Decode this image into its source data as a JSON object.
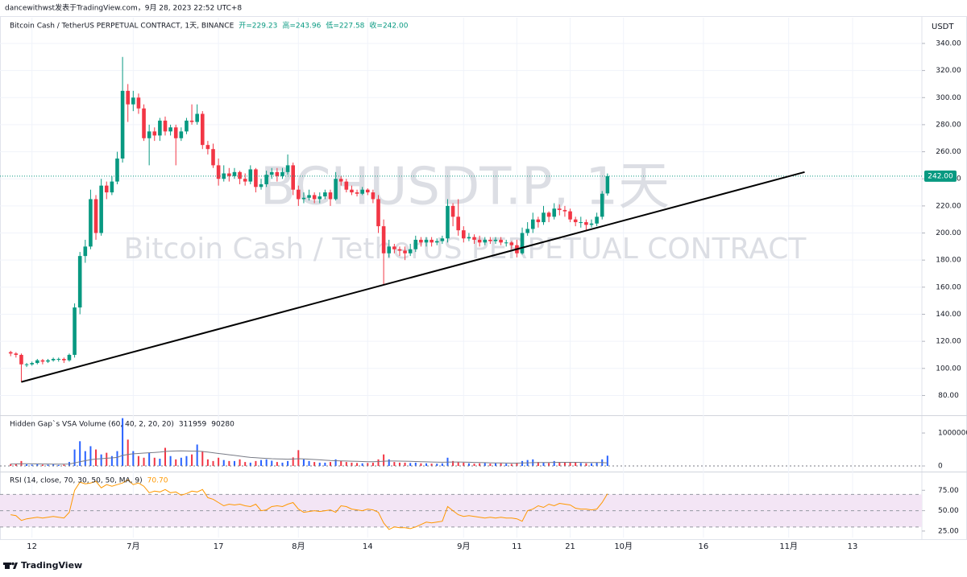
{
  "header": {
    "author_line": "dancewithwst发表于TradingView.com，9月 28, 2023 22:52 UTC+8",
    "currency": "USDT",
    "brand": "TradingView"
  },
  "chart_data": {
    "type": "candlestick",
    "title": "Bitcoin Cash / TetherUS PERPETUAL CONTRACT, 1天, BINANCE",
    "ohlc_labels": [
      "开=229.23",
      "高=243.96",
      "低=227.58",
      "收=242.00"
    ],
    "watermark": [
      "BCHUSDT.P, 1天",
      "Bitcoin Cash / TetherUS PERPETUAL CONTRACT"
    ],
    "up_color": "#089981",
    "down_color": "#f23645",
    "x": [
      "2023-06-08",
      "2023-06-09",
      "2023-06-10",
      "2023-06-11",
      "2023-06-12",
      "2023-06-13",
      "2023-06-14",
      "2023-06-15",
      "2023-06-16",
      "2023-06-17",
      "2023-06-18",
      "2023-06-19",
      "2023-06-20",
      "2023-06-21",
      "2023-06-22",
      "2023-06-23",
      "2023-06-24",
      "2023-06-25",
      "2023-06-26",
      "2023-06-27",
      "2023-06-28",
      "2023-06-29",
      "2023-06-30",
      "2023-07-01",
      "2023-07-02",
      "2023-07-03",
      "2023-07-04",
      "2023-07-05",
      "2023-07-06",
      "2023-07-07",
      "2023-07-08",
      "2023-07-09",
      "2023-07-10",
      "2023-07-11",
      "2023-07-12",
      "2023-07-13",
      "2023-07-14",
      "2023-07-15",
      "2023-07-16",
      "2023-07-17",
      "2023-07-18",
      "2023-07-19",
      "2023-07-20",
      "2023-07-21",
      "2023-07-22",
      "2023-07-23",
      "2023-07-24",
      "2023-07-25",
      "2023-07-26",
      "2023-07-27",
      "2023-07-28",
      "2023-07-29",
      "2023-07-30",
      "2023-07-31",
      "2023-08-01",
      "2023-08-02",
      "2023-08-03",
      "2023-08-04",
      "2023-08-05",
      "2023-08-06",
      "2023-08-07",
      "2023-08-08",
      "2023-08-09",
      "2023-08-10",
      "2023-08-11",
      "2023-08-12",
      "2023-08-13",
      "2023-08-14",
      "2023-08-15",
      "2023-08-16",
      "2023-08-17",
      "2023-08-18",
      "2023-08-19",
      "2023-08-20",
      "2023-08-21",
      "2023-08-22",
      "2023-08-23",
      "2023-08-24",
      "2023-08-25",
      "2023-08-26",
      "2023-08-27",
      "2023-08-28",
      "2023-08-29",
      "2023-08-30",
      "2023-08-31",
      "2023-09-01",
      "2023-09-02",
      "2023-09-03",
      "2023-09-04",
      "2023-09-05",
      "2023-09-06",
      "2023-09-07",
      "2023-09-08",
      "2023-09-09",
      "2023-09-10",
      "2023-09-11",
      "2023-09-12",
      "2023-09-13",
      "2023-09-14",
      "2023-09-15",
      "2023-09-16",
      "2023-09-17",
      "2023-09-18",
      "2023-09-19",
      "2023-09-20",
      "2023-09-21",
      "2023-09-22",
      "2023-09-23",
      "2023-09-24",
      "2023-09-25",
      "2023-09-26",
      "2023-09-27",
      "2023-09-28"
    ],
    "open": [
      112,
      111,
      110,
      103,
      103,
      104,
      106,
      105,
      106,
      107,
      107,
      106,
      110,
      145,
      183,
      190,
      225,
      200,
      235,
      230,
      238,
      255,
      305,
      295,
      300,
      292,
      270,
      275,
      272,
      283,
      275,
      278,
      270,
      275,
      283,
      282,
      288,
      265,
      262,
      250,
      240,
      244,
      242,
      245,
      240,
      238,
      247,
      234,
      236,
      243,
      245,
      242,
      245,
      250,
      232,
      225,
      226,
      228,
      225,
      227,
      230,
      225,
      240,
      238,
      232,
      230,
      229,
      232,
      230,
      225,
      205,
      185,
      190,
      188,
      187,
      185,
      188,
      195,
      193,
      195,
      193,
      194,
      196,
      220,
      212,
      202,
      196,
      197,
      195,
      193,
      195,
      194,
      195,
      193,
      193,
      191,
      185,
      200,
      203,
      210,
      208,
      215,
      212,
      218,
      217,
      216,
      210,
      208,
      208,
      206,
      207,
      212,
      229.23
    ],
    "high": [
      113,
      112,
      111,
      104,
      105,
      107,
      107,
      107,
      108,
      108,
      108,
      111,
      148,
      186,
      195,
      232,
      228,
      240,
      238,
      242,
      260,
      330,
      310,
      305,
      303,
      295,
      280,
      278,
      285,
      286,
      280,
      280,
      278,
      285,
      295,
      295,
      290,
      268,
      266,
      255,
      250,
      248,
      248,
      246,
      244,
      250,
      248,
      240,
      246,
      248,
      248,
      248,
      258,
      252,
      235,
      230,
      232,
      230,
      230,
      232,
      232,
      245,
      242,
      240,
      235,
      232,
      234,
      233,
      232,
      228,
      210,
      195,
      192,
      190,
      190,
      192,
      198,
      197,
      197,
      197,
      196,
      198,
      225,
      222,
      225,
      205,
      200,
      199,
      198,
      197,
      197,
      197,
      197,
      195,
      194,
      195,
      204,
      208,
      215,
      212,
      220,
      216,
      222,
      221,
      220,
      218,
      212,
      212,
      210,
      210,
      215,
      231,
      243.96
    ],
    "low": [
      109,
      108,
      90,
      101,
      102,
      103,
      103,
      104,
      105,
      105,
      104,
      105,
      108,
      140,
      178,
      188,
      195,
      198,
      225,
      228,
      236,
      252,
      282,
      290,
      288,
      268,
      250,
      268,
      268,
      272,
      272,
      250,
      268,
      273,
      280,
      280,
      262,
      258,
      248,
      235,
      238,
      238,
      240,
      236,
      235,
      236,
      230,
      232,
      234,
      240,
      238,
      240,
      243,
      228,
      220,
      222,
      224,
      222,
      222,
      225,
      220,
      224,
      235,
      230,
      228,
      227,
      228,
      228,
      222,
      200,
      162,
      182,
      185,
      183,
      180,
      183,
      186,
      190,
      190,
      190,
      191,
      192,
      193,
      205,
      198,
      193,
      194,
      192,
      190,
      191,
      192,
      192,
      191,
      190,
      188,
      182,
      184,
      198,
      200,
      204,
      206,
      208,
      210,
      213,
      212,
      208,
      205,
      204,
      202,
      204,
      205,
      210,
      227.58
    ],
    "close": [
      111,
      110,
      103,
      103,
      104,
      106,
      105,
      106,
      107,
      107,
      106,
      110,
      145,
      183,
      190,
      225,
      200,
      235,
      230,
      238,
      255,
      305,
      295,
      300,
      292,
      270,
      275,
      272,
      283,
      275,
      278,
      270,
      275,
      283,
      282,
      288,
      265,
      262,
      250,
      240,
      244,
      242,
      245,
      240,
      238,
      247,
      234,
      236,
      243,
      245,
      242,
      245,
      250,
      232,
      225,
      226,
      228,
      225,
      227,
      230,
      225,
      240,
      238,
      232,
      230,
      229,
      232,
      230,
      225,
      205,
      185,
      190,
      188,
      187,
      185,
      188,
      195,
      193,
      195,
      193,
      194,
      196,
      220,
      212,
      202,
      196,
      197,
      195,
      193,
      195,
      194,
      195,
      193,
      193,
      191,
      185,
      200,
      203,
      210,
      208,
      215,
      212,
      218,
      217,
      216,
      210,
      208,
      208,
      206,
      207,
      212,
      229,
      242
    ],
    "last_label": "242.00",
    "xlim": [
      "2023-06-06",
      "2023-11-26"
    ],
    "xticks": [
      {
        "value": "2023-06-12",
        "label": "12"
      },
      {
        "value": "2023-07-01",
        "label": "7月"
      },
      {
        "value": "2023-07-17",
        "label": "17"
      },
      {
        "value": "2023-08-01",
        "label": "8月"
      },
      {
        "value": "2023-08-14",
        "label": "14"
      },
      {
        "value": "2023-09-01",
        "label": "9月"
      },
      {
        "value": "2023-09-11",
        "label": "11"
      },
      {
        "value": "2023-09-21",
        "label": "21"
      },
      {
        "value": "2023-10-01",
        "label": "10月"
      },
      {
        "value": "2023-10-16",
        "label": "16"
      },
      {
        "value": "2023-11-01",
        "label": "11月"
      },
      {
        "value": "2023-11-13",
        "label": "13"
      }
    ],
    "ylim": [
      66,
      359
    ],
    "yticks": [
      {
        "value": 80,
        "label": "80.00"
      },
      {
        "value": 100,
        "label": "100.00"
      },
      {
        "value": 120,
        "label": "120.00"
      },
      {
        "value": 140,
        "label": "140.00"
      },
      {
        "value": 160,
        "label": "160.00"
      },
      {
        "value": 180,
        "label": "180.00"
      },
      {
        "value": 200,
        "label": "200.00"
      },
      {
        "value": 220,
        "label": "220.00"
      },
      {
        "value": 240,
        "label": "240.00"
      },
      {
        "value": 260,
        "label": "260.00"
      },
      {
        "value": 280,
        "label": "280.00"
      },
      {
        "value": 300,
        "label": "300.00"
      },
      {
        "value": 320,
        "label": "320.00"
      },
      {
        "value": 340,
        "label": "340.00"
      }
    ],
    "grid": true,
    "trendline": {
      "x": [
        "2023-06-10",
        "2023-11-04"
      ],
      "y": [
        90,
        245
      ],
      "color": "#000000"
    },
    "indicators": [
      {
        "type": "bar",
        "title": "Hidden Gap`s VSA Volume (60, 40, 2, 20, 20)",
        "ylim": [
          -146000,
          1490000
        ],
        "yticks": [
          0,
          1000000
        ],
        "series": [
          {
            "color_up": "#2962ff",
            "color_down": "#f23645",
            "values": [
              60000,
              70000,
              150000,
              50000,
              40000,
              50000,
              40000,
              40000,
              50000,
              30000,
              40000,
              120000,
              500000,
              750000,
              450000,
              600000,
              500000,
              350000,
              400000,
              300000,
              450000,
              1450000,
              800000,
              450000,
              300000,
              250000,
              400000,
              250000,
              220000,
              550000,
              300000,
              200000,
              250000,
              300000,
              350000,
              650000,
              450000,
              200000,
              150000,
              250000,
              180000,
              150000,
              150000,
              200000,
              120000,
              100000,
              150000,
              180000,
              200000,
              160000,
              120000,
              100000,
              150000,
              260000,
              480000,
              200000,
              150000,
              120000,
              100000,
              100000,
              120000,
              200000,
              150000,
              120000,
              100000,
              90000,
              80000,
              90000,
              100000,
              200000,
              350000,
              200000,
              120000,
              100000,
              100000,
              90000,
              100000,
              80000,
              80000,
              70000,
              70000,
              80000,
              250000,
              150000,
              120000,
              100000,
              80000,
              70000,
              80000,
              90000,
              70000,
              80000,
              80000,
              70000,
              60000,
              100000,
              150000,
              180000,
              200000,
              120000,
              100000,
              90000,
              150000,
              120000,
              100000,
              120000,
              100000,
              90000,
              80000,
              80000,
              110000,
              200000,
              311959
            ]
          },
          {
            "color": "#787b86",
            "values": [
              60000,
              62000,
              70000,
              68000,
              65000,
              63000,
              60000,
              58000,
              57000,
              55000,
              54000,
              60000,
              90000,
              130000,
              160000,
              190000,
              210000,
              220000,
              235000,
              245000,
              260000,
              320000,
              350000,
              370000,
              380000,
              390000,
              400000,
              410000,
              420000,
              440000,
              450000,
              455000,
              460000,
              455000,
              450000,
              450000,
              440000,
              420000,
              400000,
              380000,
              360000,
              340000,
              320000,
              300000,
              280000,
              260000,
              250000,
              240000,
              230000,
              220000,
              215000,
              210000,
              205000,
              210000,
              220000,
              215000,
              205000,
              195000,
              185000,
              175000,
              165000,
              160000,
              155000,
              150000,
              145000,
              140000,
              135000,
              130000,
              130000,
              135000,
              145000,
              150000,
              150000,
              148000,
              145000,
              140000,
              135000,
              130000,
              125000,
              120000,
              115000,
              112000,
              118000,
              120000,
              120000,
              118000,
              112000,
              108000,
              104000,
              100000,
              96000,
              93000,
              90000,
              88000,
              86000,
              87000,
              90000,
              95000,
              100000,
              102000,
              104000,
              105000,
              108000,
              110000,
              110000,
              111000,
              110000,
              109000,
              106000,
              104000,
              104000,
              106000,
              90280
            ]
          }
        ]
      },
      {
        "type": "line",
        "title": "RSI (14, close, 70, 30, 50, 50, MA, 9)",
        "last_label": "70.70",
        "ylim": [
          17,
          96
        ],
        "yticks": [
          {
            "value": 25,
            "label": "25.00"
          },
          {
            "value": 50,
            "label": "50.00"
          },
          {
            "value": 75,
            "label": "75.00"
          }
        ],
        "levels": [
          30,
          50,
          70
        ],
        "band": [
          30,
          70
        ],
        "band_color": "#f3e5f5",
        "series": [
          {
            "color": "#ff9800",
            "values": [
              45,
              44,
              38,
              40,
              41,
              42,
              41,
              42,
              43,
              42,
              41,
              48,
              75,
              85,
              83,
              84,
              86,
              78,
              82,
              80,
              82,
              84,
              88,
              82,
              84,
              80,
              72,
              74,
              73,
              76,
              72,
              73,
              69,
              71,
              74,
              73,
              76,
              66,
              64,
              60,
              56,
              58,
              57,
              58,
              56,
              55,
              58,
              50,
              51,
              55,
              56,
              55,
              58,
              60,
              52,
              48,
              49,
              50,
              49,
              50,
              51,
              48,
              56,
              55,
              52,
              51,
              50,
              52,
              51,
              48,
              35,
              27,
              30,
              29,
              29,
              28,
              30,
              33,
              36,
              35,
              36,
              37,
              55,
              50,
              45,
              43,
              44,
              43,
              42,
              41,
              42,
              41,
              42,
              41,
              41,
              40,
              37,
              50,
              52,
              56,
              54,
              58,
              56,
              59,
              58,
              57,
              53,
              52,
              52,
              51,
              52,
              60,
              70.7
            ]
          }
        ]
      }
    ]
  }
}
